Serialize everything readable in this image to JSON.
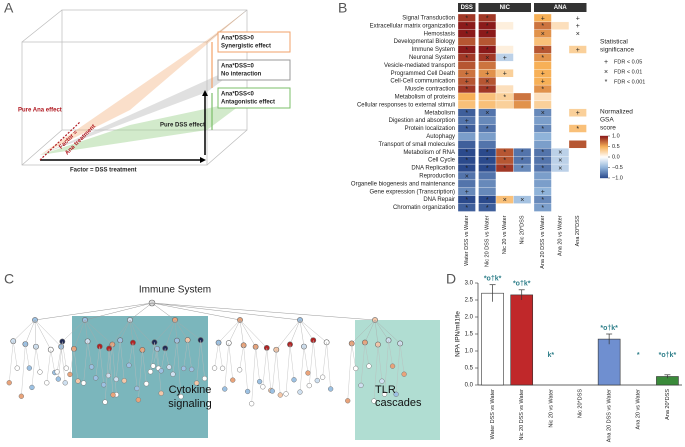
{
  "panel_labels": [
    "A",
    "B",
    "C",
    "D"
  ],
  "diagram_a": {
    "synergy": [
      "Ana*DSS>0",
      "Synergistic effect"
    ],
    "none": [
      "Ana*DSS=0",
      "No interaction"
    ],
    "antagonism": [
      "Ana*DSS<0",
      "Antagonistic effect"
    ],
    "pure_ana": "Pure Ana effect",
    "factor_ana": [
      "Factor =",
      "Ana treatment"
    ],
    "pure_dss": "Pure DSS effect",
    "factor_dss": "Factor = DSS treatment"
  },
  "heatmap": {
    "groups": [
      {
        "name": "DSS",
        "columns": [
          "Water DSS vs Water"
        ]
      },
      {
        "name": "NIC",
        "columns": [
          "Nic 20 DSS vs Water",
          "Nic 20 vs Water",
          "Nic 20*DSS"
        ]
      },
      {
        "name": "ANA",
        "columns": [
          "Ana 20 DSS vs Water",
          "Ana 20 vs Water",
          "Ana 20*DSS"
        ]
      }
    ],
    "rows": [
      "Signal Transduction",
      "Extracellular matrix organization",
      "Hemostasis",
      "Developmental Biology",
      "Immune System",
      "Neuronal System",
      "Vesicle-mediated transport",
      "Programmed Cell Death",
      "Cell-Cell communication",
      "Muscle contraction",
      "Metabolism of proteins",
      "Cellular responses to external stimuli",
      "Metabolism",
      "Digestion and absorption",
      "Protein localization",
      "Autophagy",
      "Transport of small molecules",
      "Metabolism of RNA",
      "Cell Cycle",
      "DNA Replication",
      "Reproduction",
      "Organelle biogenesis and maintenance",
      "Gene expression (Transcription)",
      "DNA Repair",
      "Chromatin organization"
    ],
    "values": [
      [
        0.9,
        0.9,
        0,
        0,
        0.5,
        0,
        0
      ],
      [
        1,
        1,
        0.1,
        0,
        0.7,
        0.2,
        0
      ],
      [
        1,
        1,
        0,
        0,
        0.6,
        0,
        0
      ],
      [
        0.8,
        0.8,
        0,
        0,
        0.4,
        0,
        0
      ],
      [
        1,
        1,
        0.1,
        0,
        0.8,
        0,
        0.3
      ],
      [
        0.9,
        0.9,
        -0.3,
        0,
        0.6,
        0,
        0
      ],
      [
        0.8,
        0.7,
        0,
        0,
        0.5,
        0,
        0
      ],
      [
        0.7,
        0.6,
        0.3,
        0,
        0.5,
        0,
        0
      ],
      [
        0.8,
        0.8,
        0,
        0,
        0.5,
        0,
        0
      ],
      [
        0.9,
        0.9,
        0.2,
        0,
        0.6,
        0,
        0
      ],
      [
        0.5,
        0.4,
        0.3,
        0.7,
        0.2,
        0,
        0
      ],
      [
        0.4,
        0.4,
        0.3,
        0.6,
        0.3,
        0,
        0
      ],
      [
        -0.9,
        -0.8,
        0,
        0,
        -0.7,
        0,
        0.3
      ],
      [
        -0.8,
        -0.7,
        0,
        0,
        -0.6,
        0,
        0
      ],
      [
        -0.9,
        -0.8,
        0,
        0,
        -0.7,
        0,
        0.4
      ],
      [
        -0.6,
        -0.6,
        0,
        0,
        -0.5,
        0,
        0
      ],
      [
        -0.9,
        -0.8,
        0,
        0,
        -0.6,
        0,
        0.8
      ],
      [
        -1,
        -1,
        0.8,
        -0.8,
        -0.8,
        -0.3,
        0
      ],
      [
        -1,
        -1,
        0.8,
        -0.8,
        -0.8,
        -0.3,
        0
      ],
      [
        -1,
        -1,
        0.9,
        -0.7,
        -0.8,
        -0.3,
        0
      ],
      [
        -0.8,
        -0.8,
        0,
        0,
        -0.6,
        0,
        0
      ],
      [
        -0.8,
        -0.7,
        0,
        0,
        -0.6,
        0,
        0
      ],
      [
        -0.7,
        -0.7,
        0,
        0,
        -0.5,
        0,
        0
      ],
      [
        -1,
        -1,
        0.4,
        -0.4,
        -0.7,
        0,
        0
      ],
      [
        -0.9,
        -0.9,
        0,
        0,
        -0.6,
        0,
        0
      ]
    ],
    "symbols": [
      [
        "*",
        "*",
        null,
        null,
        "+",
        null,
        "+"
      ],
      [
        "*",
        "*",
        null,
        null,
        "*",
        null,
        "+"
      ],
      [
        "*",
        "*",
        null,
        null,
        "×",
        null,
        "×"
      ],
      [
        null,
        null,
        null,
        null,
        null,
        null,
        null
      ],
      [
        "*",
        "*",
        null,
        null,
        "*",
        null,
        "+"
      ],
      [
        "*",
        "×",
        "+",
        null,
        "*",
        null,
        null
      ],
      [
        null,
        null,
        null,
        null,
        null,
        null,
        null
      ],
      [
        "+",
        "+",
        "+",
        null,
        "+",
        null,
        null
      ],
      [
        "+",
        "×",
        null,
        null,
        "+",
        null,
        null
      ],
      [
        "*",
        "*",
        null,
        null,
        "*",
        null,
        null
      ],
      [
        null,
        null,
        "*",
        null,
        null,
        null,
        null
      ],
      [
        null,
        null,
        null,
        null,
        null,
        null,
        null
      ],
      [
        "*",
        "×",
        null,
        null,
        "×",
        null,
        "+"
      ],
      [
        "+",
        null,
        null,
        null,
        null,
        null,
        null
      ],
      [
        "*",
        "*",
        null,
        null,
        "*",
        null,
        "*"
      ],
      [
        null,
        null,
        null,
        null,
        null,
        null,
        null
      ],
      [
        null,
        null,
        null,
        null,
        null,
        null,
        null
      ],
      [
        "*",
        "*",
        "*",
        "*",
        "*",
        "×",
        null
      ],
      [
        "*",
        "*",
        "*",
        "*",
        "*",
        "×",
        null
      ],
      [
        "*",
        "*",
        "*",
        "*",
        "*",
        "×",
        null
      ],
      [
        "×",
        null,
        null,
        null,
        null,
        null,
        null
      ],
      [
        null,
        null,
        null,
        null,
        null,
        null,
        null
      ],
      [
        "+",
        null,
        null,
        null,
        "+",
        null,
        null
      ],
      [
        "*",
        "*",
        "×",
        "×",
        "*",
        null,
        null
      ],
      [
        "*",
        "*",
        null,
        null,
        "*",
        null,
        null
      ]
    ],
    "legend": {
      "title": [
        "Statistical",
        "significance"
      ],
      "items": [
        {
          "symbol": "+",
          "label": "FDR < 0.05"
        },
        {
          "symbol": "×",
          "label": "FDR < 0.01"
        },
        {
          "symbol": "*",
          "label": "FDR < 0.001"
        }
      ]
    },
    "colorbar": {
      "title": [
        "Normalized",
        "GSA",
        "score"
      ],
      "lim": [
        -1,
        1
      ],
      "ticks": [
        {
          "value": 1,
          "label": "1.0"
        },
        {
          "value": 0.5,
          "label": "0.5"
        },
        {
          "value": 0,
          "label": "0.0"
        },
        {
          "value": -0.5,
          "label": "−0.5"
        },
        {
          "value": -1,
          "label": "−1.0"
        }
      ]
    }
  },
  "tree": {
    "root": "Immune System",
    "box_left": [
      "Cytokine",
      "signaling"
    ],
    "box_right": [
      "TLR",
      "cascades"
    ]
  },
  "chart_data": {
    "type": "bar",
    "ylabel": "NPA IPN/mll1fle",
    "categories": [
      "Water DSS vs Water",
      "Nic 20 DSS vs Water",
      "Nic 20 vs Water",
      "Nic 20*DSS",
      "Ana 20 DSS vs Water",
      "Ana 20 vs Water",
      "Ana 20*DSS"
    ],
    "values": [
      2.7,
      2.65,
      0,
      0,
      1.35,
      0,
      0.25
    ],
    "errors": [
      0.25,
      0.15,
      0,
      0,
      0.15,
      0,
      0.05
    ],
    "annotations": [
      "*o†k*",
      "*o†k*",
      "k*",
      null,
      "*o†k*",
      "*",
      "*o†k*"
    ],
    "colors": [
      "#ffffff",
      "#c0282a",
      "#c0282a",
      "#c0282a",
      "#6f8fd0",
      "#6f8fd0",
      "#3a8a3a"
    ],
    "ylim": [
      0,
      3
    ],
    "yticks": [
      {
        "value": 0,
        "label": "0.0"
      },
      {
        "value": 0.5,
        "label": "0.5"
      },
      {
        "value": 1,
        "label": "1.0"
      },
      {
        "value": 1.5,
        "label": "1.5"
      },
      {
        "value": 2,
        "label": "2.0"
      },
      {
        "value": 2.5,
        "label": "2.5"
      },
      {
        "value": 3,
        "label": "3.0"
      }
    ]
  }
}
